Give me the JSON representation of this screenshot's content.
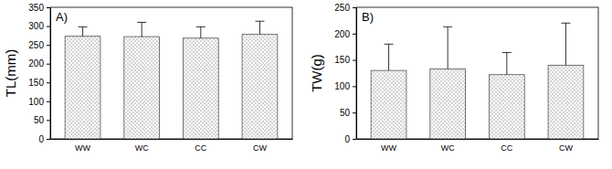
{
  "chart_data": [
    {
      "type": "bar",
      "annotation": "A)",
      "y_label": "TL(mm)",
      "categories": [
        "WW",
        "WC",
        "CC",
        "CW"
      ],
      "values": [
        273,
        272,
        268,
        278
      ],
      "errors": [
        25,
        38,
        30,
        35
      ],
      "ylim": [
        0,
        350
      ],
      "yticks": [
        0,
        50,
        100,
        150,
        200,
        250,
        300,
        350
      ]
    },
    {
      "type": "bar",
      "annotation": "B)",
      "y_label": "TW(g)",
      "categories": [
        "WW",
        "WC",
        "CC",
        "CW"
      ],
      "values": [
        130,
        133,
        122,
        140
      ],
      "errors": [
        50,
        80,
        42,
        80
      ],
      "ylim": [
        0,
        250
      ],
      "yticks": [
        0,
        50,
        100,
        150,
        200,
        250
      ]
    }
  ]
}
